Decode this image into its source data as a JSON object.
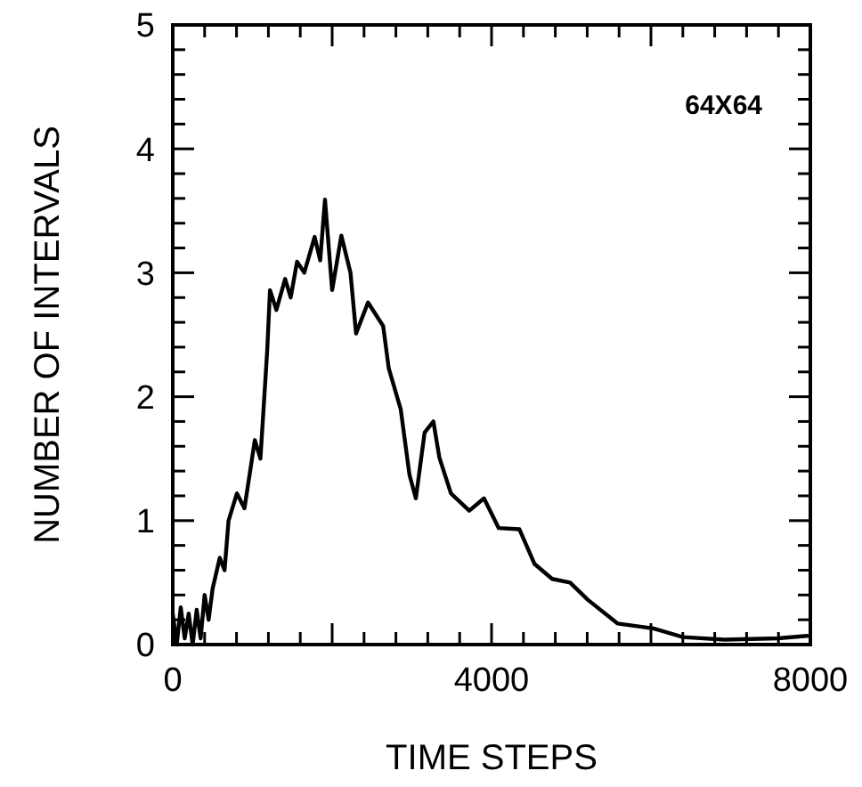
{
  "chart_data": {
    "type": "line",
    "xlabel": "TIME STEPS",
    "ylabel": "NUMBER OF INTERVALS",
    "annotations": [
      "64X64"
    ],
    "xlim": [
      0,
      8000
    ],
    "ylim": [
      0,
      5
    ],
    "xticks": [
      0,
      {
        "value": 400,
        "label": null
      },
      {
        "value": 800,
        "label": null
      },
      {
        "value": 1200,
        "label": null
      },
      {
        "value": 1600,
        "label": null
      },
      {
        "value": 2000,
        "label": null
      },
      {
        "value": 2400,
        "label": null
      },
      {
        "value": 2800,
        "label": null
      },
      {
        "value": 3200,
        "label": null
      },
      {
        "value": 3600,
        "label": null
      },
      4000,
      {
        "value": 4400,
        "label": null
      },
      {
        "value": 4800,
        "label": null
      },
      {
        "value": 5200,
        "label": null
      },
      {
        "value": 5600,
        "label": null
      },
      {
        "value": 6000,
        "label": null
      },
      {
        "value": 6400,
        "label": null
      },
      {
        "value": 6800,
        "label": null
      },
      {
        "value": 7200,
        "label": null
      },
      {
        "value": 7600,
        "label": null
      },
      8000
    ],
    "yticks": [
      0,
      {
        "value": 0.2,
        "label": null
      },
      {
        "value": 0.4,
        "label": null
      },
      {
        "value": 0.6,
        "label": null
      },
      {
        "value": 0.8,
        "label": null
      },
      1,
      {
        "value": 1.2,
        "label": null
      },
      {
        "value": 1.4,
        "label": null
      },
      {
        "value": 1.6,
        "label": null
      },
      {
        "value": 1.8,
        "label": null
      },
      2,
      {
        "value": 2.2,
        "label": null
      },
      {
        "value": 2.4,
        "label": null
      },
      {
        "value": 2.6,
        "label": null
      },
      {
        "value": 2.8,
        "label": null
      },
      3,
      {
        "value": 3.2,
        "label": null
      },
      {
        "value": 3.4,
        "label": null
      },
      {
        "value": 3.6,
        "label": null
      },
      {
        "value": 3.8,
        "label": null
      },
      4,
      {
        "value": 4.2,
        "label": null
      },
      {
        "value": 4.4,
        "label": null
      },
      {
        "value": 4.6,
        "label": null
      },
      {
        "value": 4.8,
        "label": null
      },
      5
    ],
    "grid": false,
    "marker": "none",
    "line_style": "solid",
    "series": [
      {
        "color": "#000000",
        "x": [
          0,
          50,
          100,
          150,
          200,
          250,
          300,
          350,
          400,
          450,
          500,
          590,
          650,
          700,
          805,
          900,
          1030,
          1100,
          1185,
          1220,
          1300,
          1410,
          1480,
          1560,
          1650,
          1780,
          1850,
          1910,
          2000,
          2115,
          2230,
          2300,
          2450,
          2640,
          2710,
          2860,
          2970,
          3050,
          3160,
          3270,
          3345,
          3490,
          3720,
          3905,
          4090,
          4350,
          4540,
          4760,
          4985,
          5210,
          5580,
          6030,
          6400,
          6920,
          7590,
          7960
        ],
        "values": [
          0.25,
          0,
          0.3,
          0.05,
          0.25,
          0,
          0.28,
          0.05,
          0.4,
          0.2,
          0.45,
          0.7,
          0.6,
          1.0,
          1.22,
          1.1,
          1.65,
          1.5,
          2.37,
          2.86,
          2.7,
          2.95,
          2.8,
          3.09,
          3.0,
          3.29,
          3.1,
          3.59,
          2.86,
          3.3,
          3.0,
          2.51,
          2.76,
          2.57,
          2.23,
          1.9,
          1.37,
          1.18,
          1.71,
          1.8,
          1.51,
          1.22,
          1.08,
          1.18,
          0.94,
          0.93,
          0.65,
          0.53,
          0.5,
          0.36,
          0.17,
          0.13,
          0.06,
          0.04,
          0.05,
          0.07
        ]
      }
    ]
  }
}
